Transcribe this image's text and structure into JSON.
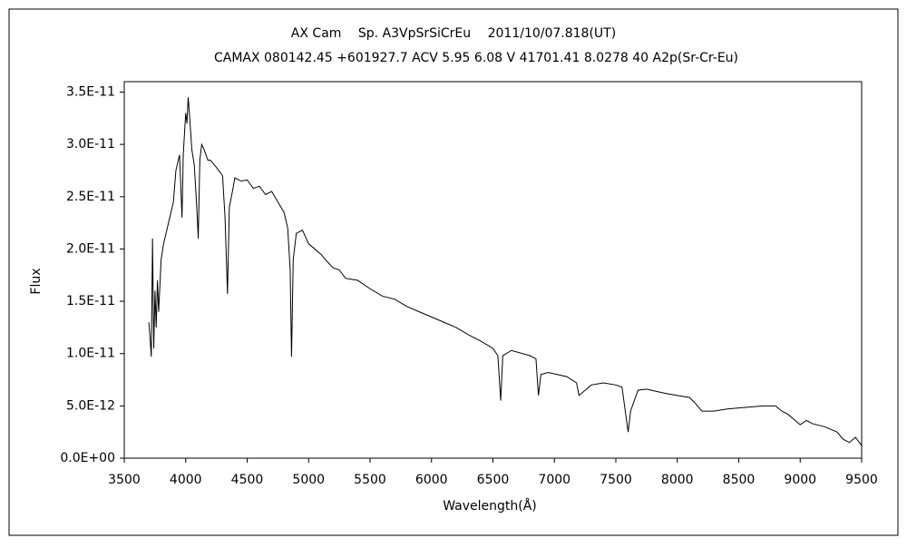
{
  "chart_data": {
    "type": "line",
    "title": "AX Cam　 Sp. A3VpSrSiCrEu　 2011/10/07.818(UT)",
    "subtitle": "CAMAX 080142.45 +601927.7 ACV 5.95 6.08 V 41701.41 8.0278 40 A2p(Sr-Cr-Eu)",
    "x_label": "Wavelength(Å)",
    "y_label": "Flux",
    "color": "#000000",
    "x": [
      3700,
      3710,
      3720,
      3730,
      3740,
      3750,
      3760,
      3770,
      3780,
      3800,
      3820,
      3850,
      3880,
      3900,
      3920,
      3950,
      3960,
      3970,
      3980,
      3990,
      4000,
      4010,
      4020,
      4030,
      4050,
      4070,
      4090,
      4102,
      4115,
      4130,
      4150,
      4180,
      4200,
      4250,
      4300,
      4320,
      4340,
      4355,
      4380,
      4400,
      4450,
      4500,
      4550,
      4600,
      4650,
      4700,
      4750,
      4800,
      4830,
      4850,
      4861,
      4875,
      4900,
      4950,
      5000,
      5050,
      5100,
      5150,
      5200,
      5250,
      5300,
      5400,
      5500,
      5600,
      5700,
      5800,
      5900,
      6000,
      6100,
      6200,
      6300,
      6400,
      6500,
      6540,
      6563,
      6580,
      6650,
      6800,
      6850,
      6870,
      6890,
      6950,
      7100,
      7180,
      7200,
      7250,
      7300,
      7400,
      7500,
      7550,
      7600,
      7620,
      7680,
      7750,
      7900,
      8000,
      8100,
      8150,
      8200,
      8300,
      8400,
      8500,
      8600,
      8700,
      8800,
      8850,
      8900,
      9000,
      9050,
      9100,
      9200,
      9300,
      9350,
      9400,
      9450,
      9500
    ],
    "values": [
      1.3e-11,
      1.15e-11,
      9.7e-12,
      2.1e-11,
      1.05e-11,
      1.6e-11,
      1.25e-11,
      1.7e-11,
      1.4e-11,
      1.9e-11,
      2.05e-11,
      2.2e-11,
      2.35e-11,
      2.45e-11,
      2.75e-11,
      2.9e-11,
      2.6e-11,
      2.3e-11,
      2.9e-11,
      3.1e-11,
      3.3e-11,
      3.2e-11,
      3.45e-11,
      3.3e-11,
      2.95e-11,
      2.8e-11,
      2.4e-11,
      2.1e-11,
      2.85e-11,
      3e-11,
      2.95e-11,
      2.85e-11,
      2.85e-11,
      2.78e-11,
      2.7e-11,
      2.3e-11,
      1.57e-11,
      2.4e-11,
      2.55e-11,
      2.68e-11,
      2.65e-11,
      2.66e-11,
      2.58e-11,
      2.6e-11,
      2.52e-11,
      2.55e-11,
      2.45e-11,
      2.35e-11,
      2.2e-11,
      1.8e-11,
      9.7e-12,
      1.9e-11,
      2.15e-11,
      2.18e-11,
      2.05e-11,
      2e-11,
      1.95e-11,
      1.88e-11,
      1.82e-11,
      1.8e-11,
      1.72e-11,
      1.7e-11,
      1.62e-11,
      1.55e-11,
      1.52e-11,
      1.45e-11,
      1.4e-11,
      1.35e-11,
      1.3e-11,
      1.25e-11,
      1.18e-11,
      1.12e-11,
      1.05e-11,
      9.8e-12,
      5.5e-12,
      9.8e-12,
      1.03e-11,
      9.8e-12,
      9.5e-12,
      6e-12,
      8e-12,
      8.2e-12,
      7.8e-12,
      7.2e-12,
      6e-12,
      6.5e-12,
      7e-12,
      7.2e-12,
      7e-12,
      6.8e-12,
      2.5e-12,
      4.5e-12,
      6.5e-12,
      6.6e-12,
      6.2e-12,
      6e-12,
      5.8e-12,
      5.2e-12,
      4.5e-12,
      4.5e-12,
      4.7e-12,
      4.8e-12,
      4.9e-12,
      5e-12,
      5e-12,
      4.5e-12,
      4.2e-12,
      3.2e-12,
      3.6e-12,
      3.3e-12,
      3e-12,
      2.5e-12,
      1.8e-12,
      1.5e-12,
      2e-12,
      1.2e-12
    ],
    "xlim": [
      3500,
      9500
    ],
    "xticks": [
      3500,
      4000,
      4500,
      5000,
      5500,
      6000,
      6500,
      7000,
      7500,
      8000,
      8500,
      9000,
      9500
    ],
    "ylim": [
      0,
      3.6e-11
    ],
    "yticks": [
      {
        "value": 0,
        "label": "0.0E+00"
      },
      {
        "value": 5e-12,
        "label": "5.0E-12"
      },
      {
        "value": 1e-11,
        "label": "1.0E-11"
      },
      {
        "value": 1.5e-11,
        "label": "1.5E-11"
      },
      {
        "value": 2e-11,
        "label": "2.0E-11"
      },
      {
        "value": 2.5e-11,
        "label": "2.5E-11"
      },
      {
        "value": 3e-11,
        "label": "3.0E-11"
      },
      {
        "value": 3.5e-11,
        "label": "3.5E-11"
      }
    ],
    "grid": false
  }
}
